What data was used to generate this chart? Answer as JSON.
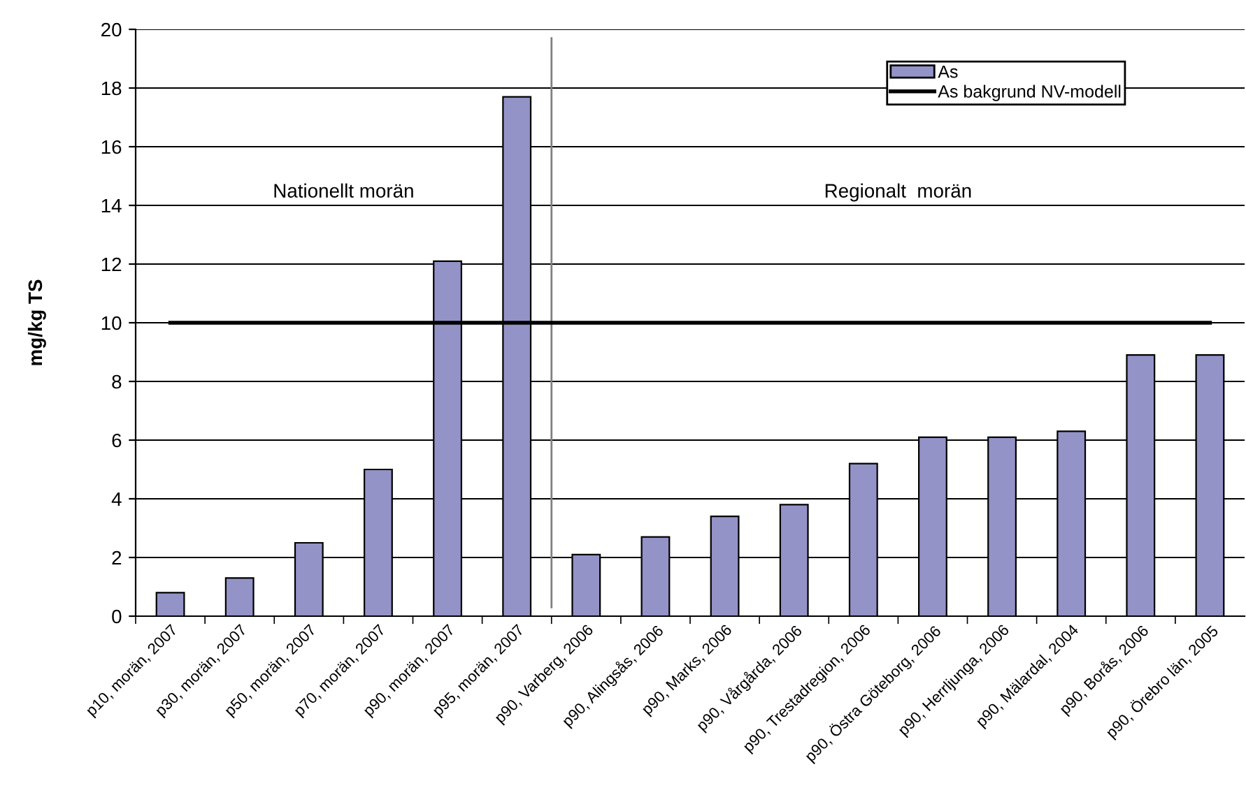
{
  "chart_data": {
    "type": "bar",
    "ylabel": "mg/kg TS",
    "categories": [
      "p10, morän, 2007",
      "p30, morän, 2007",
      "p50, morän, 2007",
      "p70, morän, 2007",
      "p90, morän, 2007",
      "p95, morän, 2007",
      "p90, Varberg, 2006",
      "p90, Alingsås, 2006",
      "p90, Marks, 2006",
      "p90, Vårgårda, 2006",
      "p90, Trestadregion, 2006",
      "p90, Östra Göteborg, 2006",
      "p90, Herrljunga, 2006",
      "p90, Mälardal, 2004",
      "p90, Borås, 2006",
      "p90, Örebro län, 2005"
    ],
    "series": [
      {
        "name": "As",
        "color": "#9393c8",
        "values": [
          0.8,
          1.3,
          2.5,
          5.0,
          12.1,
          17.7,
          2.1,
          2.7,
          3.4,
          3.8,
          5.2,
          6.1,
          6.1,
          6.3,
          8.9,
          8.9
        ]
      },
      {
        "name": "As bakgrund NV-modell",
        "type": "line",
        "color": "#000000",
        "values": [
          10,
          10,
          10,
          10,
          10,
          10,
          10,
          10,
          10,
          10,
          10,
          10,
          10,
          10,
          10,
          10
        ]
      }
    ],
    "annotations": [
      "Nationellt morän",
      "Regionalt  morän"
    ],
    "ylim": [
      0,
      20
    ],
    "yticks": [
      0,
      2,
      4,
      6,
      8,
      10,
      12,
      14,
      16,
      18,
      20
    ],
    "grid": "y",
    "legend": "top right"
  }
}
